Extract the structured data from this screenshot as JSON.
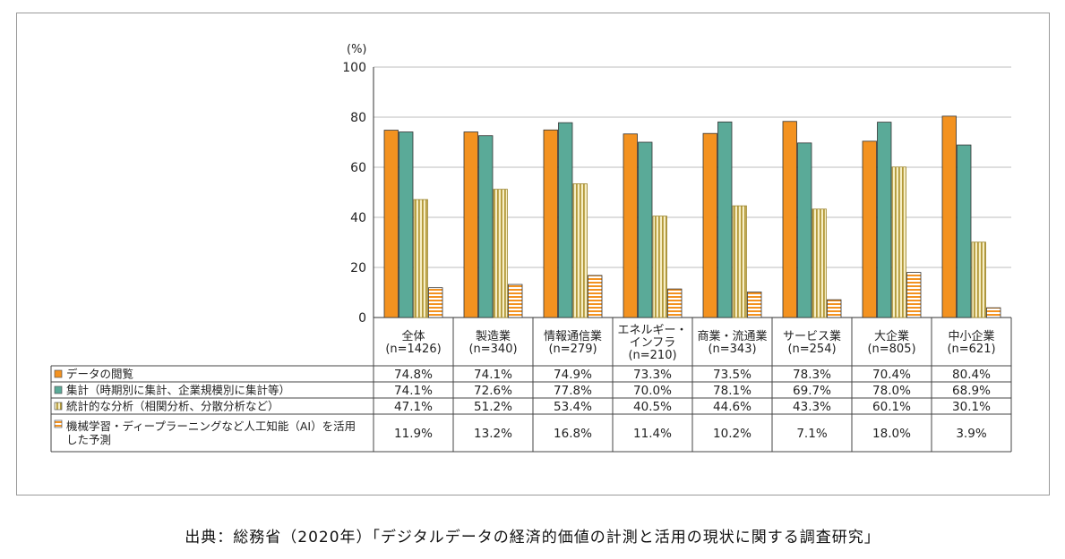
{
  "chart_data": {
    "type": "bar",
    "unit_label": "(%)",
    "ylim": [
      0,
      100
    ],
    "yticks": [
      0,
      20,
      40,
      60,
      80,
      100
    ],
    "grid": true,
    "categories": [
      [
        "全体",
        "(n=1426)"
      ],
      [
        "製造業",
        "(n=340)"
      ],
      [
        "情報通信業",
        "(n=279)"
      ],
      [
        "エネルギー・",
        "インフラ",
        "(n=210)"
      ],
      [
        "商業・流通業",
        "(n=343)"
      ],
      [
        "サービス業",
        "(n=254)"
      ],
      [
        "大企業",
        "(n=805)"
      ],
      [
        "中小企業",
        "(n=621)"
      ]
    ],
    "series": [
      {
        "name": [
          "データの閲覧"
        ],
        "color": "#f39220",
        "pattern": "solid",
        "values": [
          74.8,
          74.1,
          74.9,
          73.3,
          73.5,
          78.3,
          70.4,
          80.4
        ],
        "labels": [
          "74.8%",
          "74.1%",
          "74.9%",
          "73.3%",
          "73.5%",
          "78.3%",
          "70.4%",
          "80.4%"
        ]
      },
      {
        "name": [
          "集計（時期別に集計、企業規模別に集計等）"
        ],
        "color": "#5aaa98",
        "pattern": "solid",
        "values": [
          74.1,
          72.6,
          77.8,
          70.0,
          78.1,
          69.7,
          78.0,
          68.9
        ],
        "labels": [
          "74.1%",
          "72.6%",
          "77.8%",
          "70.0%",
          "78.1%",
          "69.7%",
          "78.0%",
          "68.9%"
        ]
      },
      {
        "name": [
          "統計的な分析（相関分析、分散分析など）"
        ],
        "color": "#d8c070",
        "pattern": "vertical",
        "values": [
          47.1,
          51.2,
          53.4,
          40.5,
          44.6,
          43.3,
          60.1,
          30.1
        ],
        "labels": [
          "47.1%",
          "51.2%",
          "53.4%",
          "40.5%",
          "44.6%",
          "43.3%",
          "60.1%",
          "30.1%"
        ]
      },
      {
        "name": [
          "機械学習・ディープラーニングなど人工知能（AI）を活用",
          "した予測"
        ],
        "color": "#f39220",
        "pattern": "horizontal",
        "values": [
          11.9,
          13.2,
          16.8,
          11.4,
          10.2,
          7.1,
          18.0,
          3.9
        ],
        "labels": [
          "11.9%",
          "13.2%",
          "16.8%",
          "11.4%",
          "10.2%",
          "7.1%",
          "18.0%",
          "3.9%"
        ]
      }
    ]
  },
  "source_note": "出典：総務省（2020年）「デジタルデータの経済的価値の計測と活用の現状に関する調査研究」"
}
